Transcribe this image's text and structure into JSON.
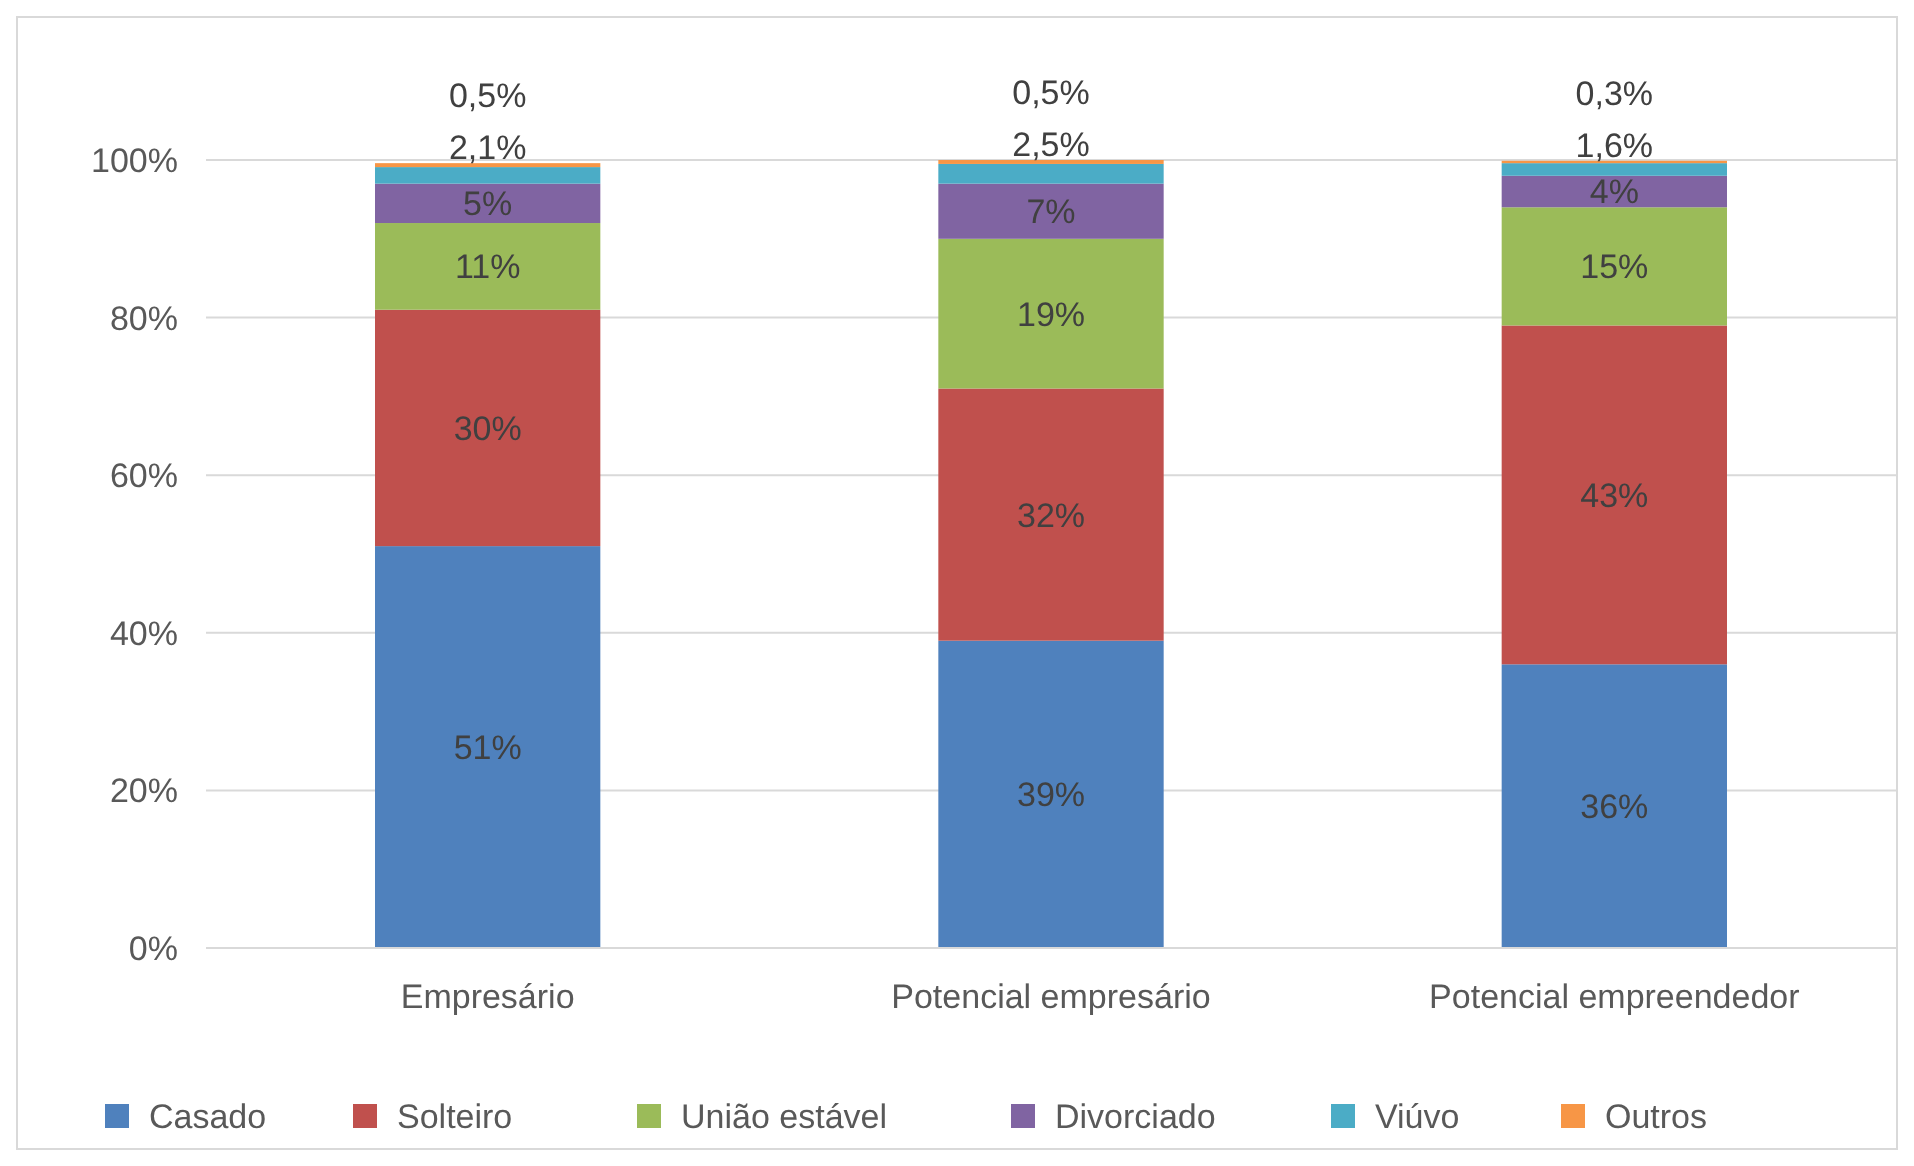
{
  "chart_data": {
    "type": "bar",
    "stacked": true,
    "categories": [
      "Empresário",
      "Potencial empresário",
      "Potencial empreendedor"
    ],
    "series": [
      {
        "name": "Casado",
        "color": "#4f81bd",
        "values": [
          51,
          39,
          36
        ],
        "value_labels": [
          "51%",
          "39%",
          "36%"
        ]
      },
      {
        "name": "Solteiro",
        "color": "#c0504d",
        "values": [
          30,
          32,
          43
        ],
        "value_labels": [
          "30%",
          "32%",
          "43%"
        ]
      },
      {
        "name": "União estável",
        "color": "#9bbb59",
        "values": [
          11,
          19,
          15
        ],
        "value_labels": [
          "11%",
          "19%",
          "15%"
        ]
      },
      {
        "name": "Divorciado",
        "color": "#8064a2",
        "values": [
          5,
          7,
          4
        ],
        "value_labels": [
          "5%",
          "7%",
          "4%"
        ]
      },
      {
        "name": "Viúvo",
        "color": "#4bacc6",
        "values": [
          2.1,
          2.5,
          1.6
        ],
        "value_labels": [
          "2,1%",
          "2,5%",
          "1,6%"
        ]
      },
      {
        "name": "Outros",
        "color": "#f79646",
        "values": [
          0.5,
          0.5,
          0.3
        ],
        "value_labels": [
          "0,5%",
          "0,5%",
          "0,3%"
        ]
      }
    ],
    "ylim": [
      0,
      100
    ],
    "yticks": [
      {
        "value": 0,
        "label": "0%"
      },
      {
        "value": 20,
        "label": "20%"
      },
      {
        "value": 40,
        "label": "40%"
      },
      {
        "value": 60,
        "label": "60%"
      },
      {
        "value": 80,
        "label": "80%"
      },
      {
        "value": 100,
        "label": "100%"
      }
    ],
    "grid": "y",
    "legend": "bottom"
  }
}
